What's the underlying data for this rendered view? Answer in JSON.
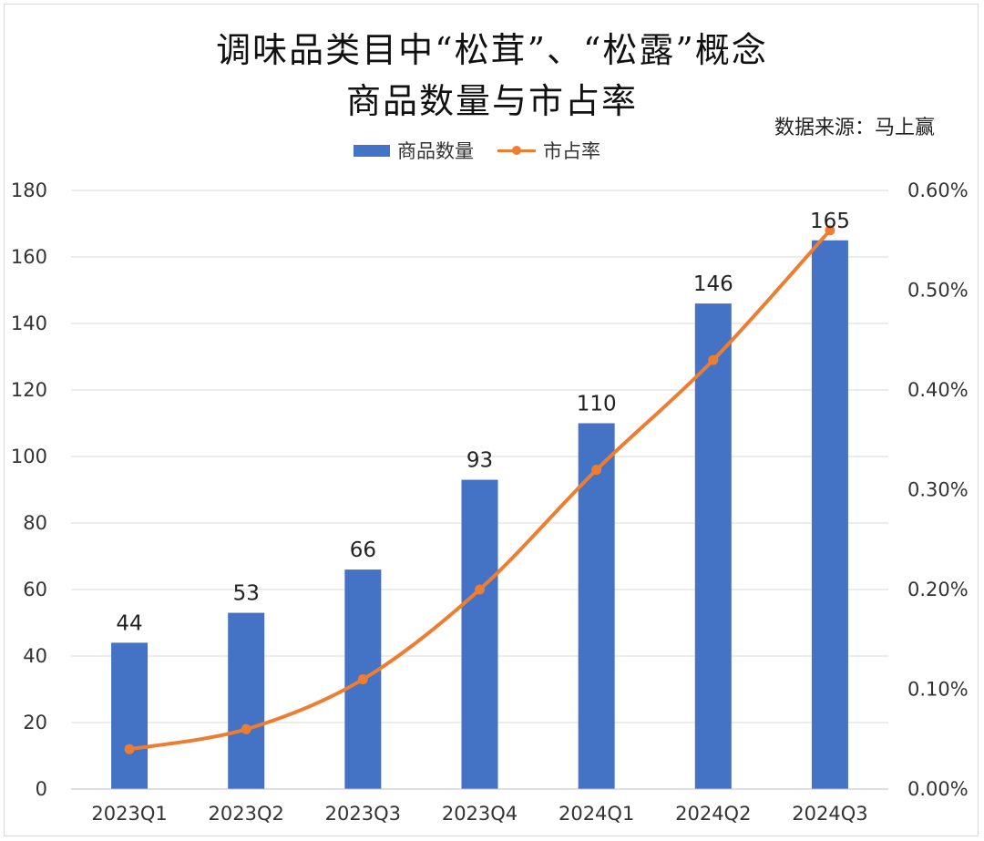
{
  "chart_data": {
    "type": "bar",
    "title_line1": "调味品类目中“松茸”、“松露”概念",
    "title_line2": "商品数量与市占率",
    "source": "数据来源：马上赢",
    "legend": [
      {
        "name": "商品数量",
        "color": "#4472c4",
        "kind": "bar"
      },
      {
        "name": "市占率",
        "color": "#ed7d31",
        "kind": "line"
      }
    ],
    "legend_position": "top",
    "categories": [
      "2023Q1",
      "2023Q2",
      "2023Q3",
      "2023Q4",
      "2024Q1",
      "2024Q2",
      "2024Q3"
    ],
    "series": [
      {
        "name": "商品数量",
        "type": "bar",
        "axis": "left",
        "color": "#4472c4",
        "values": [
          44,
          53,
          66,
          93,
          110,
          146,
          165
        ]
      },
      {
        "name": "市占率",
        "type": "line",
        "axis": "right",
        "color": "#ed7d31",
        "values": [
          0.0004,
          0.0006,
          0.0011,
          0.002,
          0.0032,
          0.0043,
          0.0056
        ]
      }
    ],
    "y_left": {
      "ylim": [
        0,
        180
      ],
      "ticks": [
        "0",
        "20",
        "40",
        "60",
        "80",
        "100",
        "120",
        "140",
        "160",
        "180"
      ]
    },
    "y_right": {
      "ylim": [
        0,
        0.006
      ],
      "ticks": [
        "0.00%",
        "0.10%",
        "0.20%",
        "0.30%",
        "0.40%",
        "0.50%",
        "0.60%"
      ]
    },
    "grid": true,
    "data_labels": [
      "44",
      "53",
      "66",
      "93",
      "110",
      "146",
      "165"
    ]
  }
}
